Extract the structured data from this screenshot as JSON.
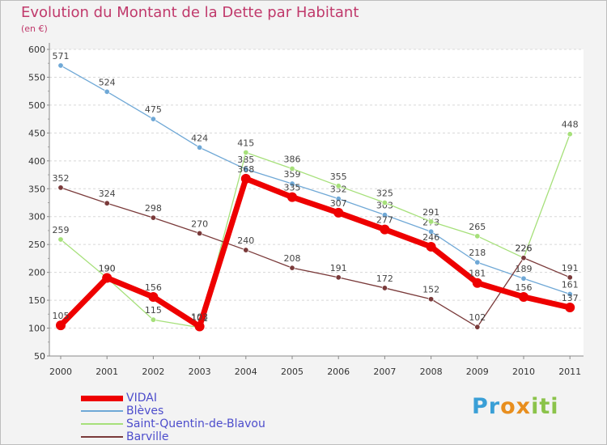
{
  "chart_data": {
    "type": "line",
    "title": "Evolution du Montant de la Dette par Habitant",
    "subtitle": "(en €)",
    "xlabel": "",
    "ylabel": "",
    "categories": [
      "2000",
      "2001",
      "2002",
      "2003",
      "2004",
      "2005",
      "2006",
      "2007",
      "2008",
      "2009",
      "2010",
      "2011"
    ],
    "ylim": [
      50,
      600
    ],
    "yticks": [
      50,
      100,
      150,
      200,
      250,
      300,
      350,
      400,
      450,
      500,
      550,
      600
    ],
    "grid": "horizontal-dashed",
    "series": [
      {
        "name": "VIDAI",
        "color": "#ee0000",
        "bold": true,
        "values": [
          105,
          190,
          156,
          103,
          368,
          335,
          307,
          277,
          246,
          181,
          156,
          137
        ]
      },
      {
        "name": "Blèves",
        "color": "#6fa8d6",
        "bold": false,
        "values": [
          571,
          524,
          475,
          424,
          385,
          359,
          332,
          303,
          273,
          218,
          189,
          161
        ]
      },
      {
        "name": "Saint-Quentin-de-Blavou",
        "color": "#a6e07a",
        "bold": false,
        "values": [
          259,
          190,
          115,
          101,
          415,
          386,
          355,
          325,
          291,
          265,
          226,
          448
        ]
      },
      {
        "name": "Barville",
        "color": "#7a3a3a",
        "bold": false,
        "values": [
          352,
          324,
          298,
          270,
          240,
          208,
          191,
          172,
          152,
          102,
          226,
          191
        ]
      }
    ]
  },
  "brand": {
    "p1": "Pr",
    "p2": "ox",
    "p3": "iti"
  }
}
